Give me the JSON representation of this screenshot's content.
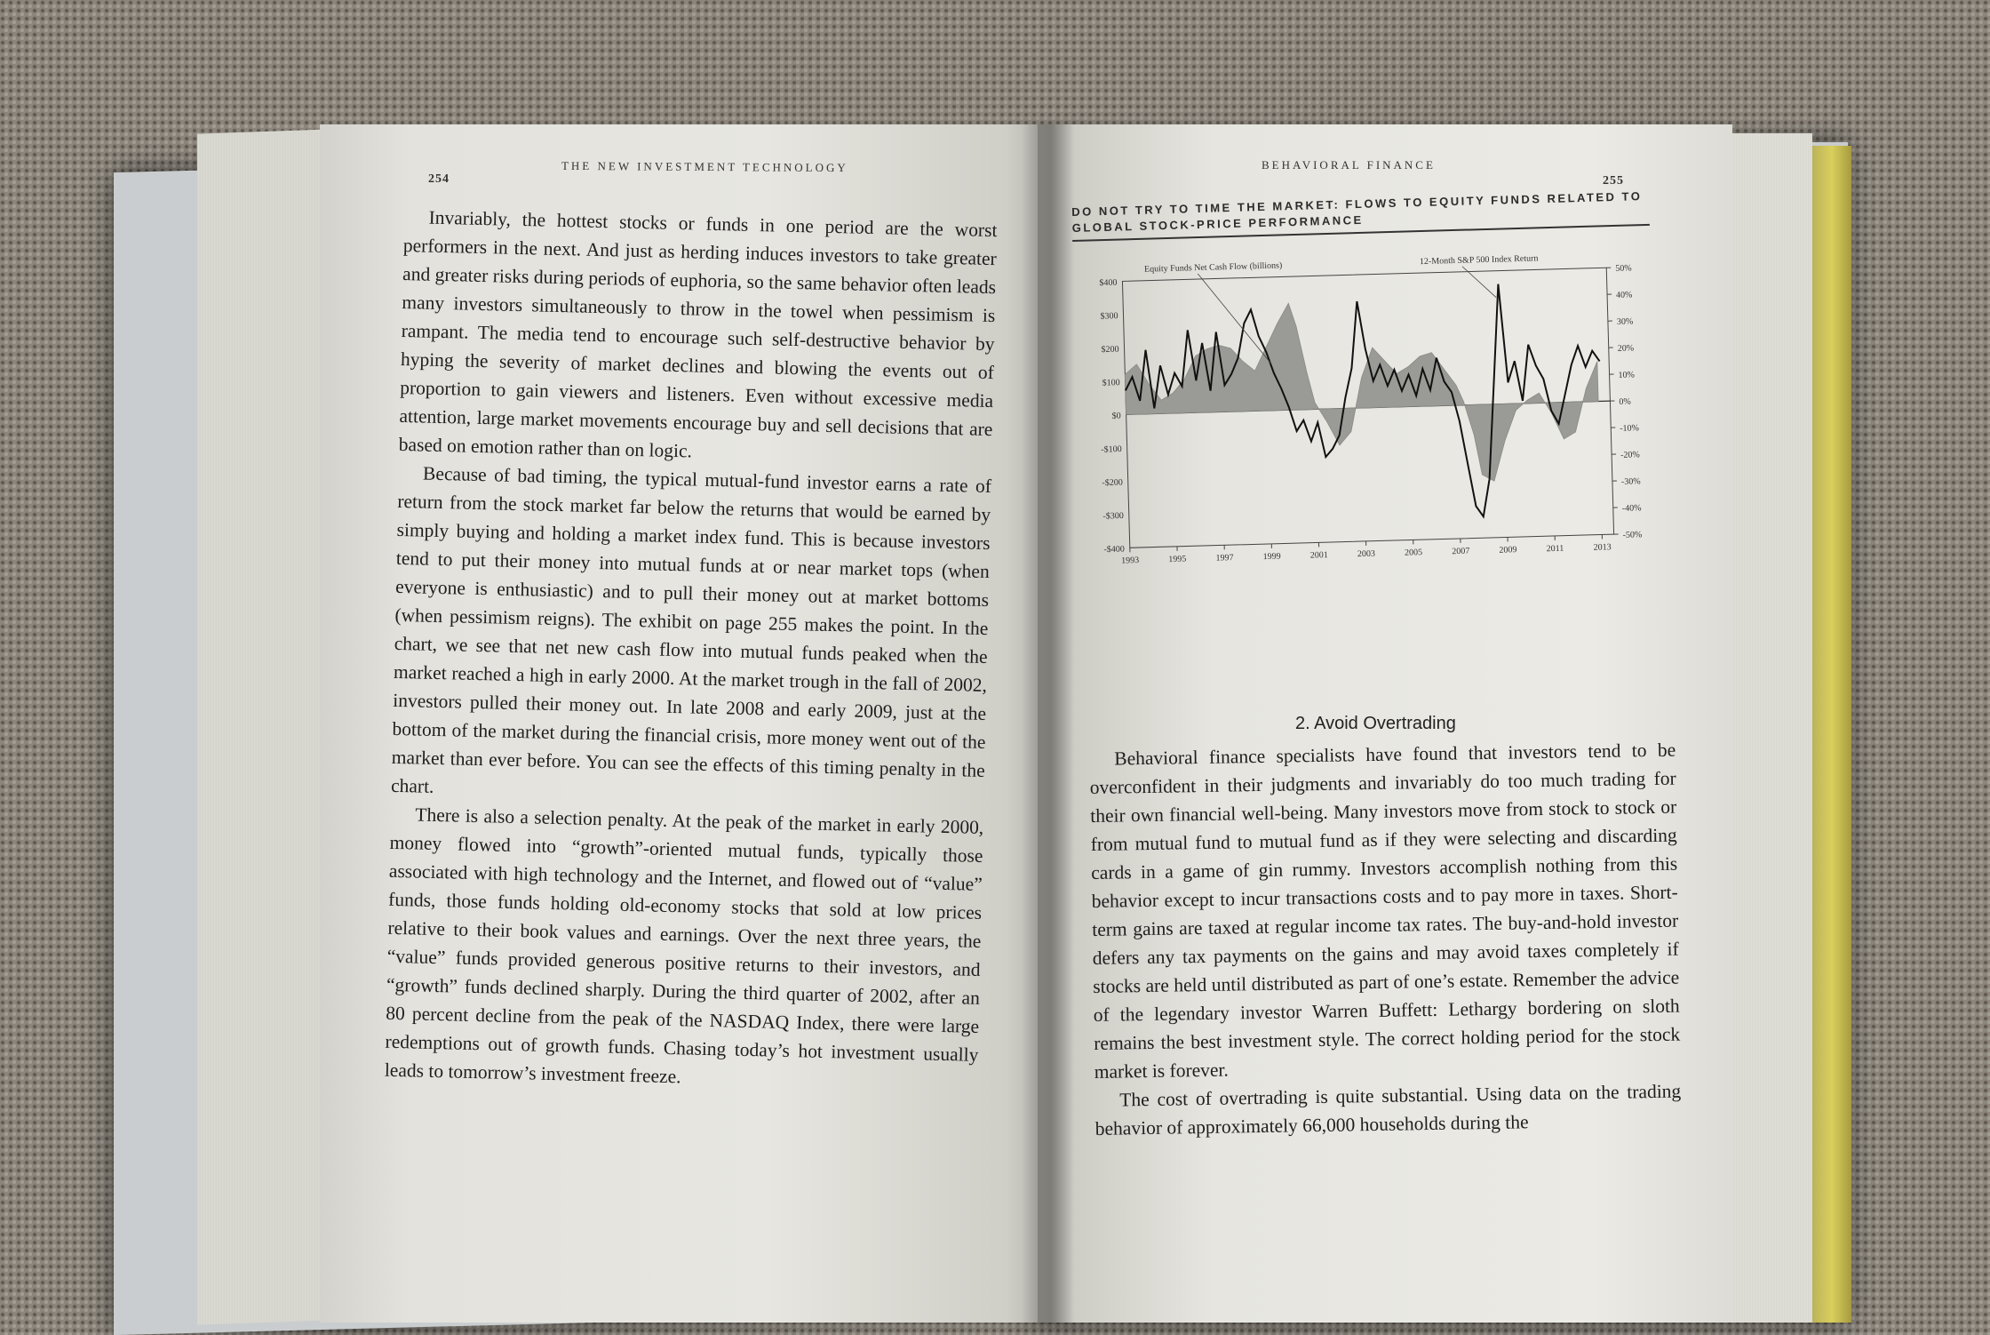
{
  "left_page": {
    "folio": "254",
    "running_head": "THE NEW INVESTMENT TECHNOLOGY",
    "paragraphs": [
      "Invariably, the hottest stocks or funds in one period are the worst performers in the next. And just as herding induces investors to take greater and greater risks during periods of euphoria, so the same behavior often leads many investors simultaneously to throw in the towel when pessimism is rampant. The media tend to encourage such self-destructive behavior by hyping the severity of market declines and blowing the events out of proportion to gain viewers and listeners. Even without excessive media attention, large market movements encourage buy and sell decisions that are based on emotion rather than on logic.",
      "Because of bad timing, the typical mutual-fund investor earns a rate of return from the stock market far below the returns that would be earned by simply buying and holding a market index fund. This is because investors tend to put their money into mutual funds at or near market tops (when everyone is enthusiastic) and to pull their money out at market bottoms (when pessimism reigns). The exhibit on page 255 makes the point. In the chart, we see that net new cash flow into mutual funds peaked when the market reached a high in early 2000. At the market trough in the fall of 2002, investors pulled their money out. In late 2008 and early 2009, just at the bottom of the market during the financial crisis, more money went out of the market than ever before. You can see the effects of this timing penalty in the chart.",
      "There is also a selection penalty. At the peak of the market in early 2000, money flowed into “growth”-oriented mutual funds, typically those associated with high technology and the Internet, and flowed out of “value” funds, those funds holding old-economy stocks that sold at low prices relative to their book values and earnings. Over the next three years, the “value” funds provided generous positive returns to their investors, and “growth” funds declined sharply. During the third quarter of 2002, after an 80 percent decline from the peak of the NASDAQ Index, there were large redemptions out of growth funds. Chasing today’s hot investment usually leads to tomorrow’s investment freeze."
    ]
  },
  "right_page": {
    "folio": "255",
    "running_head": "BEHAVIORAL FINANCE",
    "exhibit_title": "DO NOT TRY TO TIME THE MARKET: FLOWS TO EQUITY FUNDS RELATED TO GLOBAL STOCK-PRICE PERFORMANCE",
    "section_heading": "2. Avoid Overtrading",
    "paragraphs": [
      "Behavioral finance specialists have found that investors tend to be overconfident in their judgments and invariably do too much trading for their own financial well-being. Many investors move from stock to stock or from mutual fund to mutual fund as if they were selecting and discarding cards in a game of gin rummy. Investors accomplish nothing from this behavior except to incur transactions costs and to pay more in taxes. Short-term gains are taxed at regular income tax rates. The buy-and-hold investor defers any tax payments on the gains and may avoid taxes completely if stocks are held until distributed as part of one’s estate. Remember the advice of the legendary investor Warren Buffett: Lethargy bordering on sloth remains the best investment style. The correct holding period for the stock market is forever.",
      "The cost of overtrading is quite substantial. Using data on the trading behavior of approximately 66,000 households during the"
    ]
  },
  "chart_data": {
    "type": "area",
    "title": "DO NOT TRY TO TIME THE MARKET: FLOWS TO EQUITY FUNDS RELATED TO GLOBAL STOCK-PRICE PERFORMANCE",
    "annotations": [
      "Equity Funds Net Cash Flow (billions)",
      "12-Month S&P 500 Index Return"
    ],
    "x_ticks": [
      "1993",
      "1995",
      "1997",
      "1999",
      "2001",
      "2003",
      "2005",
      "2007",
      "2009",
      "2011",
      "2013"
    ],
    "y_left_ticks": [
      "$400",
      "$300",
      "$200",
      "$100",
      "$0",
      "-$100",
      "-$200",
      "-$300",
      "-$400"
    ],
    "y_right_ticks": [
      "50%",
      "40%",
      "30%",
      "20%",
      "10%",
      "0%",
      "-10%",
      "-20%",
      "-30%",
      "-40%",
      "-50%"
    ],
    "xlim": [
      1993,
      2013.5
    ],
    "ylim_left": [
      -400,
      400
    ],
    "ylim_right": [
      -50,
      50
    ],
    "series": [
      {
        "name": "Equity Funds Net Cash Flow (billions)",
        "style": "gray-area",
        "axis": "left",
        "x": [
          1993,
          1993.5,
          1994,
          1994.5,
          1995,
          1995.5,
          1996,
          1996.5,
          1997,
          1997.5,
          1998,
          1998.5,
          1999,
          1999.5,
          2000,
          2000.3,
          2000.7,
          2001,
          2001.5,
          2002,
          2002.5,
          2003,
          2003.5,
          2004,
          2004.5,
          2005,
          2005.5,
          2006,
          2006.5,
          2007,
          2007.3,
          2007.7,
          2008,
          2008.5,
          2009,
          2009.5,
          2010,
          2010.5,
          2011,
          2011.5,
          2012,
          2012.5,
          2013
        ],
        "values": [
          120,
          150,
          90,
          40,
          60,
          100,
          170,
          190,
          200,
          190,
          150,
          120,
          190,
          260,
          320,
          250,
          110,
          20,
          -40,
          -110,
          -70,
          90,
          180,
          140,
          100,
          120,
          150,
          160,
          110,
          60,
          10,
          -90,
          -210,
          -230,
          -110,
          -20,
          10,
          30,
          -30,
          -110,
          -90,
          40,
          120
        ]
      },
      {
        "name": "12-Month S&P 500 Index Return",
        "style": "black-line",
        "axis": "right",
        "x": [
          1993,
          1993.3,
          1993.6,
          1993.9,
          1994.2,
          1994.5,
          1994.8,
          1995.1,
          1995.4,
          1995.7,
          1996,
          1996.3,
          1996.6,
          1996.9,
          1997.2,
          1997.5,
          1997.8,
          1998.1,
          1998.4,
          1998.7,
          1999,
          1999.3,
          1999.6,
          1999.9,
          2000.2,
          2000.5,
          2000.8,
          2001.1,
          2001.4,
          2001.7,
          2002,
          2002.3,
          2002.6,
          2002.9,
          2003.2,
          2003.5,
          2003.8,
          2004.1,
          2004.4,
          2004.7,
          2005,
          2005.3,
          2005.6,
          2005.9,
          2006.2,
          2006.5,
          2006.8,
          2007.1,
          2007.4,
          2007.7,
          2008,
          2008.3,
          2008.6,
          2008.9,
          2009.2,
          2009.5,
          2009.8,
          2010.1,
          2010.4,
          2010.7,
          2011,
          2011.3,
          2011.6,
          2011.9,
          2012.2,
          2012.5,
          2012.8,
          2013.1
        ],
        "values": [
          9,
          14,
          5,
          24,
          2,
          18,
          7,
          15,
          10,
          31,
          12,
          26,
          8,
          30,
          10,
          14,
          20,
          33,
          38,
          28,
          22,
          14,
          8,
          1,
          -8,
          -4,
          -12,
          -5,
          -18,
          -15,
          -10,
          4,
          15,
          40,
          22,
          10,
          16,
          8,
          14,
          6,
          12,
          4,
          14,
          6,
          18,
          9,
          5,
          -6,
          -22,
          -38,
          -42,
          -28,
          8,
          45,
          8,
          16,
          1,
          22,
          14,
          9,
          -3,
          -8,
          3,
          14,
          21,
          13,
          19,
          15
        ]
      }
    ]
  }
}
